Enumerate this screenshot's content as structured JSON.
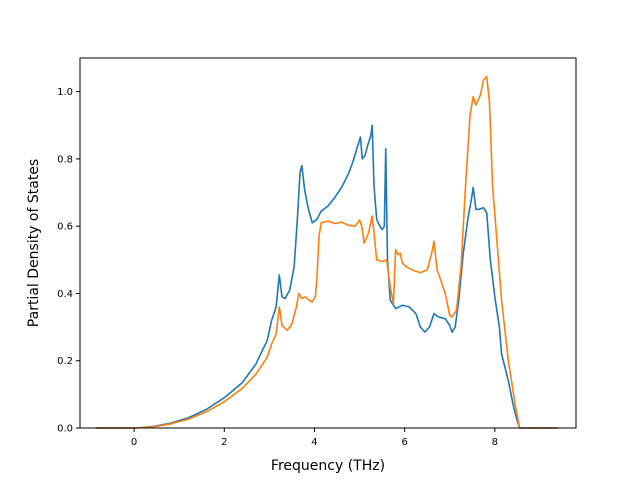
{
  "chart_data": {
    "type": "line",
    "title": "",
    "xlabel": "Frequency (THz)",
    "ylabel": "Partial Density of States",
    "xlim": [
      -1.2,
      9.8
    ],
    "ylim": [
      0.0,
      1.1
    ],
    "xticks": [
      0,
      2,
      4,
      6,
      8
    ],
    "yticks": [
      0.0,
      0.2,
      0.4,
      0.6,
      0.8,
      1.0
    ],
    "xtick_labels": [
      "0",
      "2",
      "4",
      "6",
      "8"
    ],
    "ytick_labels": [
      "0.0",
      "0.2",
      "0.4",
      "0.6",
      "0.8",
      "1.0"
    ],
    "grid": false,
    "series": [
      {
        "color": "#1f77b4",
        "points": [
          [
            -0.85,
            0.0
          ],
          [
            0.0,
            0.0
          ],
          [
            0.4,
            0.004
          ],
          [
            0.8,
            0.014
          ],
          [
            1.2,
            0.03
          ],
          [
            1.6,
            0.055
          ],
          [
            2.0,
            0.09
          ],
          [
            2.4,
            0.135
          ],
          [
            2.7,
            0.19
          ],
          [
            2.95,
            0.26
          ],
          [
            3.05,
            0.32
          ],
          [
            3.15,
            0.36
          ],
          [
            3.22,
            0.455
          ],
          [
            3.28,
            0.39
          ],
          [
            3.35,
            0.385
          ],
          [
            3.45,
            0.41
          ],
          [
            3.55,
            0.48
          ],
          [
            3.62,
            0.62
          ],
          [
            3.68,
            0.76
          ],
          [
            3.72,
            0.78
          ],
          [
            3.78,
            0.71
          ],
          [
            3.85,
            0.66
          ],
          [
            3.95,
            0.61
          ],
          [
            4.05,
            0.62
          ],
          [
            4.15,
            0.645
          ],
          [
            4.3,
            0.66
          ],
          [
            4.45,
            0.685
          ],
          [
            4.6,
            0.715
          ],
          [
            4.75,
            0.755
          ],
          [
            4.85,
            0.79
          ],
          [
            4.95,
            0.835
          ],
          [
            5.02,
            0.865
          ],
          [
            5.06,
            0.8
          ],
          [
            5.12,
            0.81
          ],
          [
            5.18,
            0.84
          ],
          [
            5.25,
            0.87
          ],
          [
            5.28,
            0.9
          ],
          [
            5.32,
            0.72
          ],
          [
            5.38,
            0.62
          ],
          [
            5.45,
            0.6
          ],
          [
            5.5,
            0.59
          ],
          [
            5.55,
            0.6
          ],
          [
            5.58,
            0.83
          ],
          [
            5.62,
            0.5
          ],
          [
            5.68,
            0.38
          ],
          [
            5.8,
            0.355
          ],
          [
            5.95,
            0.365
          ],
          [
            6.1,
            0.36
          ],
          [
            6.25,
            0.34
          ],
          [
            6.35,
            0.3
          ],
          [
            6.45,
            0.285
          ],
          [
            6.55,
            0.3
          ],
          [
            6.65,
            0.34
          ],
          [
            6.75,
            0.33
          ],
          [
            6.9,
            0.325
          ],
          [
            7.0,
            0.305
          ],
          [
            7.05,
            0.285
          ],
          [
            7.12,
            0.3
          ],
          [
            7.2,
            0.38
          ],
          [
            7.3,
            0.52
          ],
          [
            7.4,
            0.62
          ],
          [
            7.48,
            0.68
          ],
          [
            7.52,
            0.715
          ],
          [
            7.58,
            0.65
          ],
          [
            7.65,
            0.65
          ],
          [
            7.75,
            0.655
          ],
          [
            7.82,
            0.64
          ],
          [
            7.9,
            0.5
          ],
          [
            8.0,
            0.39
          ],
          [
            8.1,
            0.3
          ],
          [
            8.15,
            0.22
          ],
          [
            8.3,
            0.14
          ],
          [
            8.42,
            0.06
          ],
          [
            8.5,
            0.02
          ],
          [
            8.55,
            0.0
          ],
          [
            9.4,
            0.0
          ]
        ]
      },
      {
        "color": "#ff7f0e",
        "points": [
          [
            -0.85,
            0.0
          ],
          [
            0.0,
            0.0
          ],
          [
            0.4,
            0.003
          ],
          [
            0.8,
            0.012
          ],
          [
            1.2,
            0.026
          ],
          [
            1.6,
            0.048
          ],
          [
            2.0,
            0.078
          ],
          [
            2.4,
            0.118
          ],
          [
            2.7,
            0.16
          ],
          [
            2.95,
            0.21
          ],
          [
            3.05,
            0.25
          ],
          [
            3.15,
            0.28
          ],
          [
            3.22,
            0.36
          ],
          [
            3.28,
            0.305
          ],
          [
            3.4,
            0.29
          ],
          [
            3.5,
            0.31
          ],
          [
            3.6,
            0.36
          ],
          [
            3.65,
            0.4
          ],
          [
            3.72,
            0.385
          ],
          [
            3.8,
            0.39
          ],
          [
            3.88,
            0.38
          ],
          [
            3.95,
            0.375
          ],
          [
            4.02,
            0.39
          ],
          [
            4.06,
            0.46
          ],
          [
            4.1,
            0.57
          ],
          [
            4.15,
            0.61
          ],
          [
            4.3,
            0.615
          ],
          [
            4.45,
            0.608
          ],
          [
            4.6,
            0.612
          ],
          [
            4.75,
            0.603
          ],
          [
            4.9,
            0.6
          ],
          [
            5.0,
            0.618
          ],
          [
            5.05,
            0.6
          ],
          [
            5.1,
            0.55
          ],
          [
            5.2,
            0.58
          ],
          [
            5.28,
            0.63
          ],
          [
            5.32,
            0.58
          ],
          [
            5.38,
            0.5
          ],
          [
            5.5,
            0.495
          ],
          [
            5.6,
            0.5
          ],
          [
            5.68,
            0.42
          ],
          [
            5.75,
            0.37
          ],
          [
            5.8,
            0.53
          ],
          [
            5.85,
            0.515
          ],
          [
            5.9,
            0.52
          ],
          [
            5.95,
            0.49
          ],
          [
            6.05,
            0.478
          ],
          [
            6.2,
            0.468
          ],
          [
            6.35,
            0.462
          ],
          [
            6.5,
            0.47
          ],
          [
            6.6,
            0.52
          ],
          [
            6.65,
            0.555
          ],
          [
            6.72,
            0.47
          ],
          [
            6.8,
            0.44
          ],
          [
            6.9,
            0.4
          ],
          [
            7.0,
            0.335
          ],
          [
            7.05,
            0.33
          ],
          [
            7.15,
            0.35
          ],
          [
            7.25,
            0.48
          ],
          [
            7.35,
            0.72
          ],
          [
            7.45,
            0.93
          ],
          [
            7.52,
            0.985
          ],
          [
            7.58,
            0.96
          ],
          [
            7.68,
            0.99
          ],
          [
            7.75,
            1.035
          ],
          [
            7.82,
            1.045
          ],
          [
            7.88,
            0.97
          ],
          [
            7.95,
            0.72
          ],
          [
            8.05,
            0.55
          ],
          [
            8.15,
            0.38
          ],
          [
            8.3,
            0.2
          ],
          [
            8.45,
            0.07
          ],
          [
            8.55,
            0.0
          ],
          [
            9.4,
            0.0
          ]
        ]
      }
    ]
  }
}
